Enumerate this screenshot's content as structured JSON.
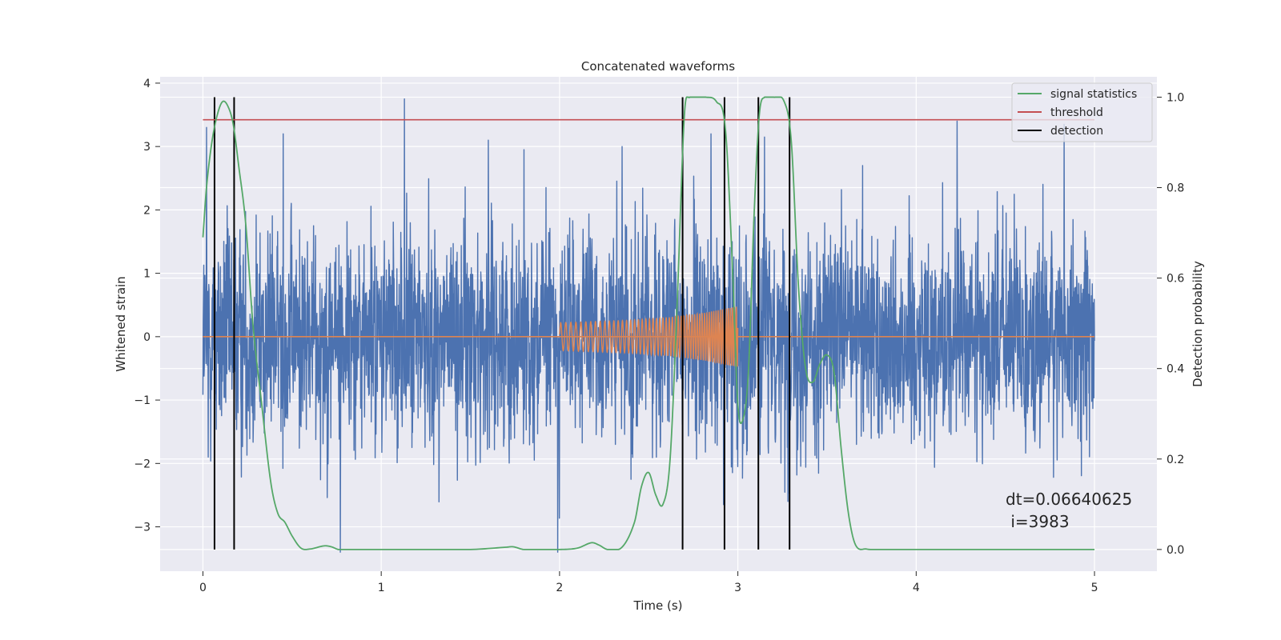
{
  "chart_data": {
    "type": "line",
    "title": "Concatenated waveforms",
    "xlabel": "Time (s)",
    "ylabel": "Whitened strain",
    "y2label": "Detection probability",
    "xlim": [
      -0.24,
      5.35
    ],
    "ylim": [
      -3.7,
      4.1
    ],
    "y2lim": [
      -0.048,
      1.045
    ],
    "xticks": [
      0,
      1,
      2,
      3,
      4,
      5
    ],
    "yticks": [
      -3,
      -2,
      -1,
      0,
      1,
      2,
      3,
      4
    ],
    "y2ticks": [
      0.0,
      0.2,
      0.4,
      0.6,
      0.8,
      1.0
    ],
    "xtick_labels": [
      "0",
      "1",
      "2",
      "3",
      "4",
      "5"
    ],
    "ytick_labels": [
      "−3",
      "−2",
      "−1",
      "0",
      "1",
      "2",
      "3",
      "4"
    ],
    "y2tick_labels": [
      "0.0",
      "0.2",
      "0.4",
      "0.6",
      "0.8",
      "1.0"
    ],
    "grid": true,
    "legend_position": "top-right",
    "legend": [
      {
        "label": "signal statistics",
        "color": "#55a868"
      },
      {
        "label": "threshold",
        "color": "#c44e52"
      },
      {
        "label": "detection",
        "color": "#000000"
      }
    ],
    "annotation": {
      "line1": "dt=0.06640625",
      "line2": " i=3983",
      "x": 4.5,
      "y": -2.6
    },
    "series": [
      {
        "role": "noise",
        "color": "#4c72b0",
        "x_range": [
          0,
          5
        ],
        "approx_amplitude": 2.5,
        "spikes": [
          {
            "x": 0.02,
            "y": 3.3
          },
          {
            "x": 0.03,
            "y": -1.9
          },
          {
            "x": 0.45,
            "y": 3.2
          },
          {
            "x": 0.77,
            "y": -3.4
          },
          {
            "x": 1.13,
            "y": 3.75
          },
          {
            "x": 1.6,
            "y": 3.1
          },
          {
            "x": 1.8,
            "y": 2.95
          },
          {
            "x": 1.99,
            "y": -3.4
          },
          {
            "x": 2.35,
            "y": 3.0
          },
          {
            "x": 2.85,
            "y": 3.2
          },
          {
            "x": 2.92,
            "y": -2.65
          },
          {
            "x": 3.15,
            "y": 3.15
          },
          {
            "x": 3.28,
            "y": -2.6
          },
          {
            "x": 3.7,
            "y": 2.7
          },
          {
            "x": 4.23,
            "y": 3.4
          },
          {
            "x": 4.83,
            "y": 3.35
          }
        ]
      },
      {
        "role": "injected-waveform",
        "color": "#dd8452",
        "x": [
          2.0,
          2.2,
          2.4,
          2.6,
          2.8,
          3.0
        ],
        "envelope": [
          0.22,
          0.24,
          0.26,
          0.3,
          0.37,
          0.48
        ]
      },
      {
        "name": "signal statistics",
        "axis": "right",
        "color": "#55a868",
        "x": [
          0.0,
          0.02,
          0.05,
          0.08,
          0.11,
          0.14,
          0.17,
          0.2,
          0.24,
          0.28,
          0.33,
          0.38,
          0.42,
          0.46,
          0.5,
          0.55,
          0.6,
          0.68,
          0.72,
          0.76,
          0.8,
          1.0,
          1.2,
          1.5,
          1.7,
          1.74,
          1.8,
          2.0,
          2.1,
          2.18,
          2.22,
          2.27,
          2.35,
          2.42,
          2.46,
          2.5,
          2.54,
          2.58,
          2.62,
          2.66,
          2.7,
          2.73,
          2.76,
          2.82,
          2.88,
          2.93,
          2.97,
          3.0,
          3.03,
          3.06,
          3.09,
          3.12,
          3.15,
          3.2,
          3.26,
          3.3,
          3.34,
          3.38,
          3.42,
          3.46,
          3.5,
          3.54,
          3.58,
          3.62,
          3.66,
          3.72,
          3.8,
          4.0,
          4.5,
          5.0
        ],
        "y": [
          0.69,
          0.8,
          0.9,
          0.96,
          0.99,
          0.98,
          0.94,
          0.85,
          0.72,
          0.5,
          0.32,
          0.15,
          0.08,
          0.06,
          0.03,
          0.003,
          0.001,
          0.008,
          0.006,
          0.0,
          0.0,
          0.0,
          0.0,
          0.0,
          0.005,
          0.006,
          0.0,
          0.0,
          0.003,
          0.015,
          0.01,
          0.0,
          0.005,
          0.06,
          0.14,
          0.17,
          0.12,
          0.1,
          0.2,
          0.55,
          0.96,
          1.0,
          1.0,
          1.0,
          0.99,
          0.93,
          0.62,
          0.32,
          0.29,
          0.4,
          0.73,
          0.96,
          1.0,
          1.0,
          0.99,
          0.9,
          0.58,
          0.4,
          0.37,
          0.41,
          0.43,
          0.39,
          0.22,
          0.08,
          0.01,
          0.001,
          0.0,
          0.0,
          0.0,
          0.0
        ]
      },
      {
        "name": "threshold",
        "axis": "right",
        "color": "#c44e52",
        "x": [
          0,
          5
        ],
        "y": [
          0.95,
          0.95
        ]
      },
      {
        "name": "detection",
        "color": "#000000",
        "x_positions": [
          0.065,
          0.175,
          2.69,
          2.925,
          3.115,
          3.29
        ],
        "y_range": [
          0.0,
          1.0
        ]
      }
    ]
  }
}
